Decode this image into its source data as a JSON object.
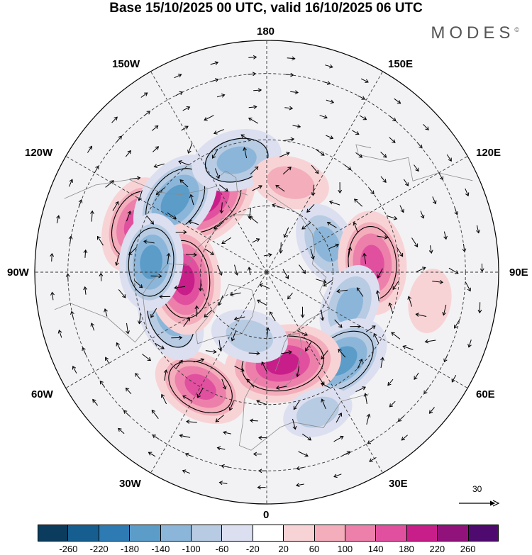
{
  "title": "Base 15/10/2025 00 UTC, valid 16/10/2025 06 UTC",
  "brand": "MODES",
  "brand_mark": "©",
  "longitude_labels": {
    "top": "180",
    "bottom": "0",
    "left": "90W",
    "right": "90E",
    "upper_left_1": "150W",
    "upper_left_2": "120W",
    "upper_right_1": "150E",
    "upper_right_2": "120E",
    "lower_left_1": "60W",
    "lower_left_2": "30W",
    "lower_right_1": "60E",
    "lower_right_2": "30E"
  },
  "reference_vector": "30",
  "colorbar": {
    "colors": [
      "#0b3c5d",
      "#155e8f",
      "#2e7bb3",
      "#5b9cc9",
      "#8bb6d9",
      "#b7cbe3",
      "#dcdff0",
      "#ffffff",
      "#f8d3d6",
      "#f3adbb",
      "#ec80ab",
      "#e1509f",
      "#c81e89",
      "#92127c",
      "#4f0a6f"
    ],
    "tick_labels": [
      "-260",
      "-220",
      "-180",
      "-140",
      "-100",
      "-60",
      "-20",
      "20",
      "60",
      "100",
      "140",
      "180",
      "220",
      "260"
    ]
  },
  "anomaly_centers": [
    {
      "lat": 62,
      "lon": 220,
      "value": 200
    },
    {
      "lat": 48,
      "lon": 250,
      "value": 160
    },
    {
      "lat": 55,
      "lon": 232,
      "value": -180
    },
    {
      "lat": 55,
      "lon": 195,
      "value": -140
    },
    {
      "lat": 62,
      "lon": 165,
      "value": 100
    },
    {
      "lat": 70,
      "lon": 115,
      "value": -120
    },
    {
      "lat": 58,
      "lon": 95,
      "value": 180
    },
    {
      "lat": 63,
      "lon": 68,
      "value": -120
    },
    {
      "lat": 55,
      "lon": 40,
      "value": -180
    },
    {
      "lat": 62,
      "lon": 10,
      "value": 220
    },
    {
      "lat": 50,
      "lon": 330,
      "value": 160
    },
    {
      "lat": 58,
      "lon": 295,
      "value": -140
    },
    {
      "lat": 65,
      "lon": 275,
      "value": 200
    },
    {
      "lat": 55,
      "lon": 265,
      "value": -160
    },
    {
      "lat": 70,
      "lon": 345,
      "value": -100
    },
    {
      "lat": 45,
      "lon": 20,
      "value": -80
    },
    {
      "lat": 40,
      "lon": 80,
      "value": 60
    }
  ]
}
